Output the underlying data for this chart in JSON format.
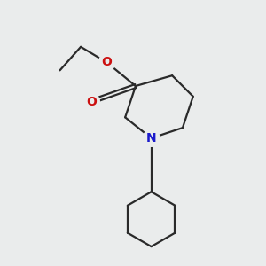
{
  "bg_color": "#eaecec",
  "bond_color": "#2a2a2a",
  "N_color": "#1a1acc",
  "O_color": "#cc1010",
  "line_width": 1.6,
  "figsize": [
    3.0,
    3.0
  ],
  "dpi": 100,
  "xlim": [
    0,
    10
  ],
  "ylim": [
    0,
    10
  ]
}
